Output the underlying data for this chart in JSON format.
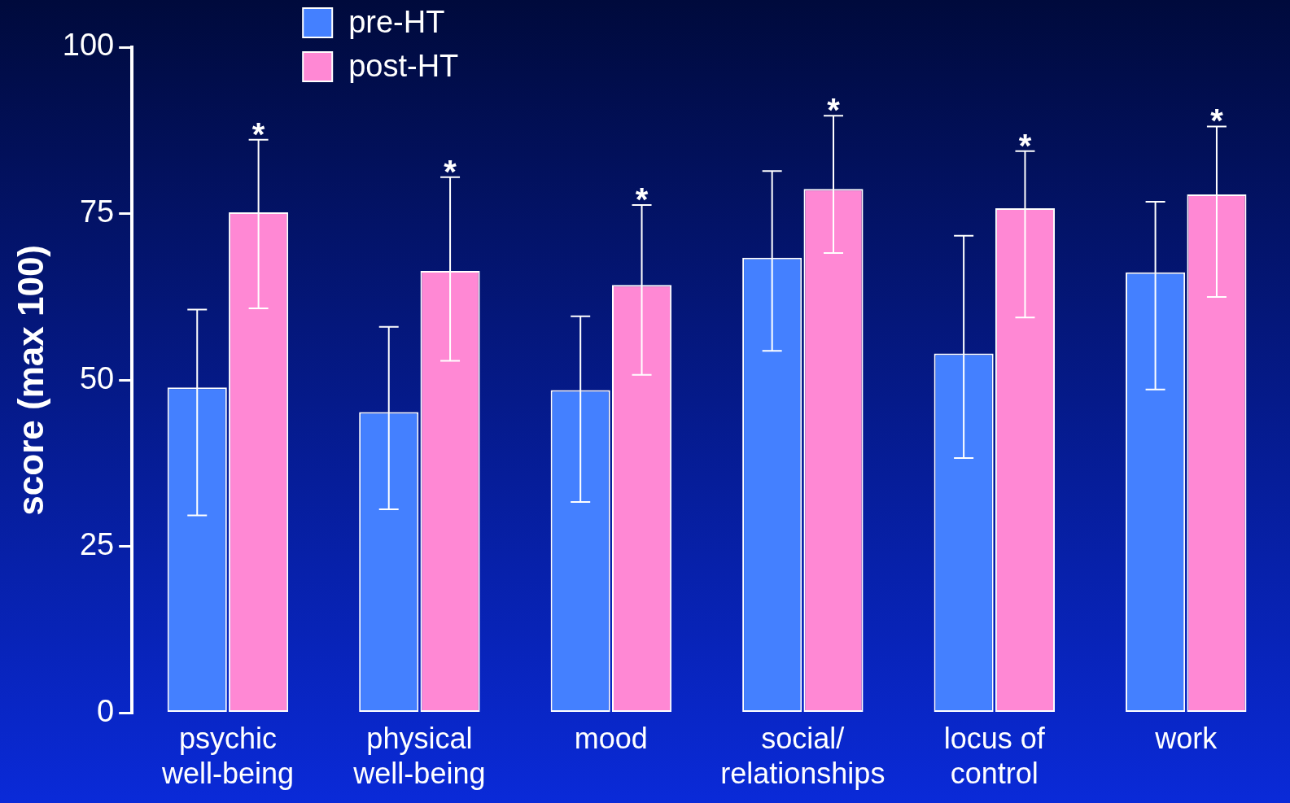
{
  "chart_data": {
    "type": "bar",
    "ylabel": "score (max 100)",
    "categories": [
      "psychic\nwell-being",
      "physical\nwell-being",
      "mood",
      "social/\nrelationships",
      "locus of\ncontrol",
      "work"
    ],
    "series": [
      {
        "name": "pre-HT",
        "color": "#4480ff",
        "values": [
          48.9,
          45.2,
          48.5,
          68.4,
          54.0,
          66.2
        ],
        "errors": [
          [
            29.7,
            60.6
          ],
          [
            30.6,
            58.0
          ],
          [
            31.7,
            59.6
          ],
          [
            54.4,
            81.4
          ],
          [
            38.3,
            71.7
          ],
          [
            48.6,
            76.8
          ]
        ]
      },
      {
        "name": "post-HT",
        "color": "#ff88d4",
        "values": [
          75.2,
          66.4,
          64.3,
          78.7,
          75.8,
          77.9
        ],
        "errors": [
          [
            60.8,
            86.1
          ],
          [
            52.9,
            80.5
          ],
          [
            50.8,
            76.3
          ],
          [
            69.1,
            89.7
          ],
          [
            59.4,
            84.4
          ],
          [
            62.5,
            88.1
          ]
        ]
      }
    ],
    "ylim": [
      0,
      100
    ],
    "yticks": [
      0,
      25,
      50,
      75,
      100
    ],
    "grid": false,
    "legend": "top left",
    "annotations": [
      "*",
      "*",
      "*",
      "*",
      "*",
      "*"
    ]
  }
}
